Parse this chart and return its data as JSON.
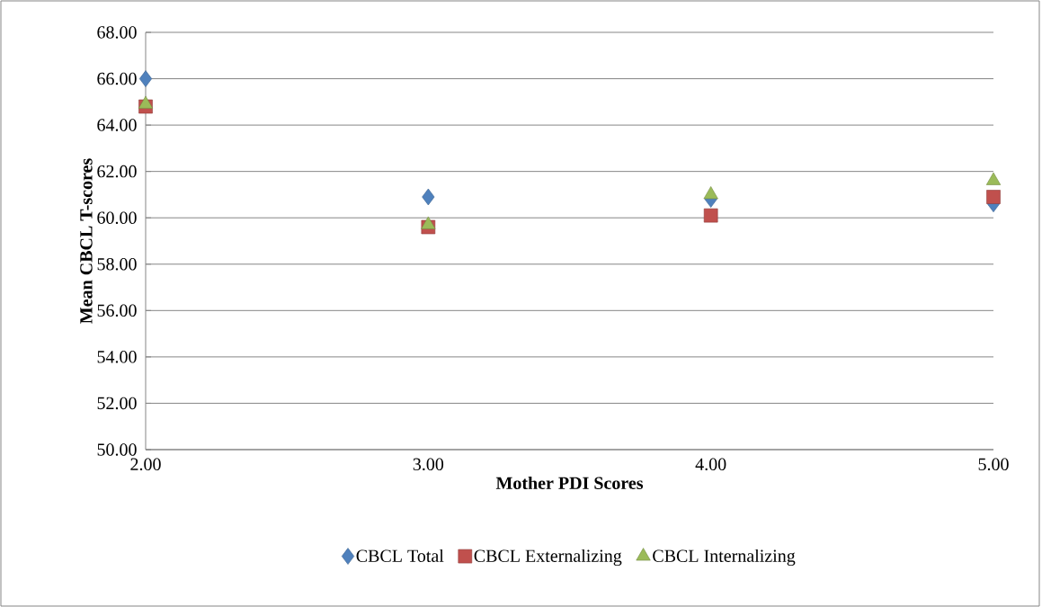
{
  "chart_data": {
    "type": "scatter",
    "xlabel": "Mother PDI Scores",
    "ylabel": "Mean CBCL T-scores",
    "x": [
      2,
      3,
      4,
      5
    ],
    "series": [
      {
        "name": "CBCL Total",
        "color": "#4f81bd",
        "marker": "diamond",
        "values": [
          66.0,
          60.9,
          60.8,
          60.6
        ]
      },
      {
        "name": "CBCL Externalizing",
        "color": "#c0504d",
        "marker": "square",
        "values": [
          64.8,
          59.6,
          60.1,
          60.9
        ]
      },
      {
        "name": "CBCL Internalizing",
        "color": "#9bbb59",
        "marker": "triangle",
        "values": [
          64.9,
          59.7,
          61.0,
          61.6
        ]
      }
    ],
    "xlim": [
      2,
      5
    ],
    "xticks": [
      {
        "value": 2,
        "label": "2.00"
      },
      {
        "value": 3,
        "label": "3.00"
      },
      {
        "value": 4,
        "label": "4.00"
      },
      {
        "value": 5,
        "label": "5.00"
      }
    ],
    "ylim": [
      50,
      68
    ],
    "yticks": [
      {
        "value": 50,
        "label": "50.00"
      },
      {
        "value": 52,
        "label": "52.00"
      },
      {
        "value": 54,
        "label": "54.00"
      },
      {
        "value": 56,
        "label": "56.00"
      },
      {
        "value": 58,
        "label": "58.00"
      },
      {
        "value": 60,
        "label": "60.00"
      },
      {
        "value": 62,
        "label": "62.00"
      },
      {
        "value": 64,
        "label": "64.00"
      },
      {
        "value": 66,
        "label": "66.00"
      },
      {
        "value": 68,
        "label": "68.00"
      }
    ],
    "grid": "y",
    "legend": "bottom"
  }
}
